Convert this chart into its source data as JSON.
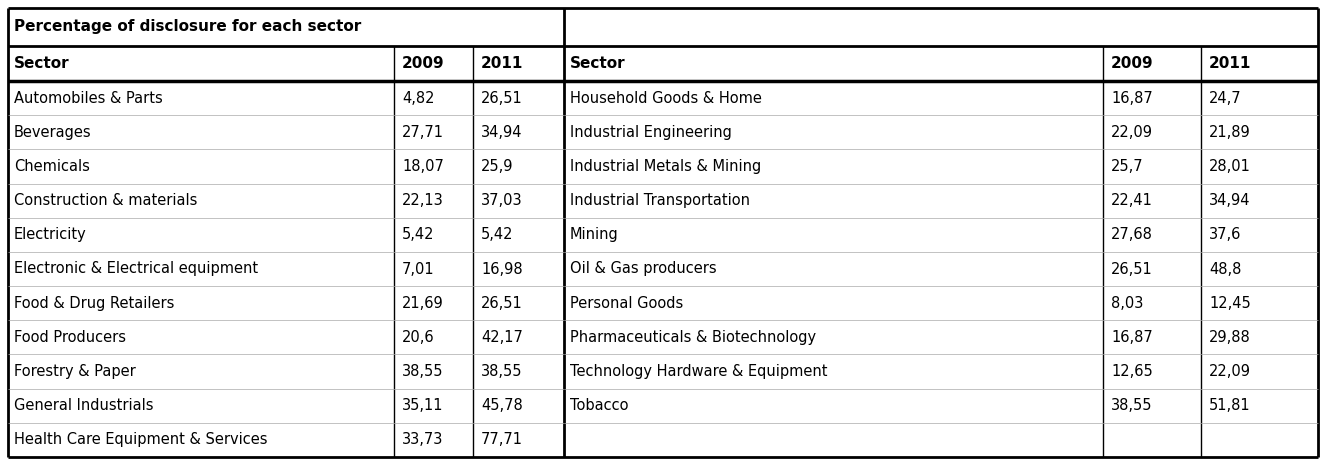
{
  "title": "Percentage of disclosure for each sector",
  "left_headers": [
    "Sector",
    "2009",
    "2011"
  ],
  "right_headers": [
    "Sector",
    "2009",
    "2011"
  ],
  "left_rows": [
    [
      "Automobiles & Parts",
      "4,82",
      "26,51"
    ],
    [
      "Beverages",
      "27,71",
      "34,94"
    ],
    [
      "Chemicals",
      "18,07",
      "25,9"
    ],
    [
      "Construction & materials",
      "22,13",
      "37,03"
    ],
    [
      "Electricity",
      "5,42",
      "5,42"
    ],
    [
      "Electronic & Electrical equipment",
      "7,01",
      "16,98"
    ],
    [
      "Food & Drug Retailers",
      "21,69",
      "26,51"
    ],
    [
      "Food Producers",
      "20,6",
      "42,17"
    ],
    [
      "Forestry & Paper",
      "38,55",
      "38,55"
    ],
    [
      "General Industrials",
      "35,11",
      "45,78"
    ],
    [
      "Health Care Equipment & Services",
      "33,73",
      "77,71"
    ]
  ],
  "right_rows": [
    [
      "Household Goods & Home",
      "16,87",
      "24,7"
    ],
    [
      "Industrial Engineering",
      "22,09",
      "21,89"
    ],
    [
      "Industrial Metals & Mining",
      "25,7",
      "28,01"
    ],
    [
      "Industrial Transportation",
      "22,41",
      "34,94"
    ],
    [
      "Mining",
      "27,68",
      "37,6"
    ],
    [
      "Oil & Gas producers",
      "26,51",
      "48,8"
    ],
    [
      "Personal Goods",
      "8,03",
      "12,45"
    ],
    [
      "Pharmaceuticals & Biotechnology",
      "16,87",
      "29,88"
    ],
    [
      "Technology Hardware & Equipment",
      "12,65",
      "22,09"
    ],
    [
      "Tobacco",
      "38,55",
      "51,81"
    ],
    [
      "",
      "",
      ""
    ]
  ],
  "bg_color": "#ffffff",
  "font_size": 10.5,
  "header_font_size": 11,
  "title_font_size": 11,
  "border_lw": 2.0,
  "header_lw": 2.5,
  "divider_lw": 2.0,
  "col_lw": 1.0,
  "row_lw": 0.5
}
